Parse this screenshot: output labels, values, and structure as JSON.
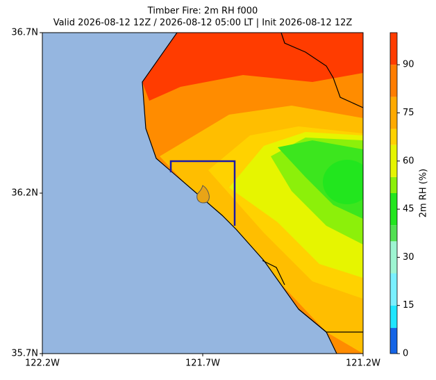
{
  "chart_data": {
    "type": "map",
    "title": "Timber Fire: 2m RH f000",
    "subtitle": "Valid 2026-08-12 12Z / 2026-08-12 05:00 LT | Init 2026-08-12 12Z",
    "xlim": [
      -122.2,
      -121.2
    ],
    "xticks": [
      {
        "value": -122.2,
        "label": "122.2W"
      },
      {
        "value": -121.7,
        "label": "121.7W"
      },
      {
        "value": -121.2,
        "label": "121.2W"
      }
    ],
    "ylim": [
      35.7,
      36.7
    ],
    "yticks": [
      {
        "value": 35.7,
        "label": "35.7N"
      },
      {
        "value": 36.2,
        "label": "36.2N"
      },
      {
        "value": 36.7,
        "label": "36.7N"
      }
    ],
    "colorbar": {
      "label": "2m RH (%)",
      "lim": [
        0,
        100
      ],
      "ticks": [
        0,
        15,
        30,
        45,
        60,
        75,
        90
      ],
      "levels": [
        0,
        8,
        15,
        25,
        35,
        40,
        50,
        55,
        65,
        70,
        80,
        90,
        100
      ],
      "colors": [
        "#1464e6",
        "#1ee6ff",
        "#7af0ff",
        "#9ef5d2",
        "#52e052",
        "#22e61e",
        "#8cf00a",
        "#e6f500",
        "#ffd200",
        "#ffaa00",
        "#ff7d00",
        "#ff3c00"
      ]
    }
  }
}
